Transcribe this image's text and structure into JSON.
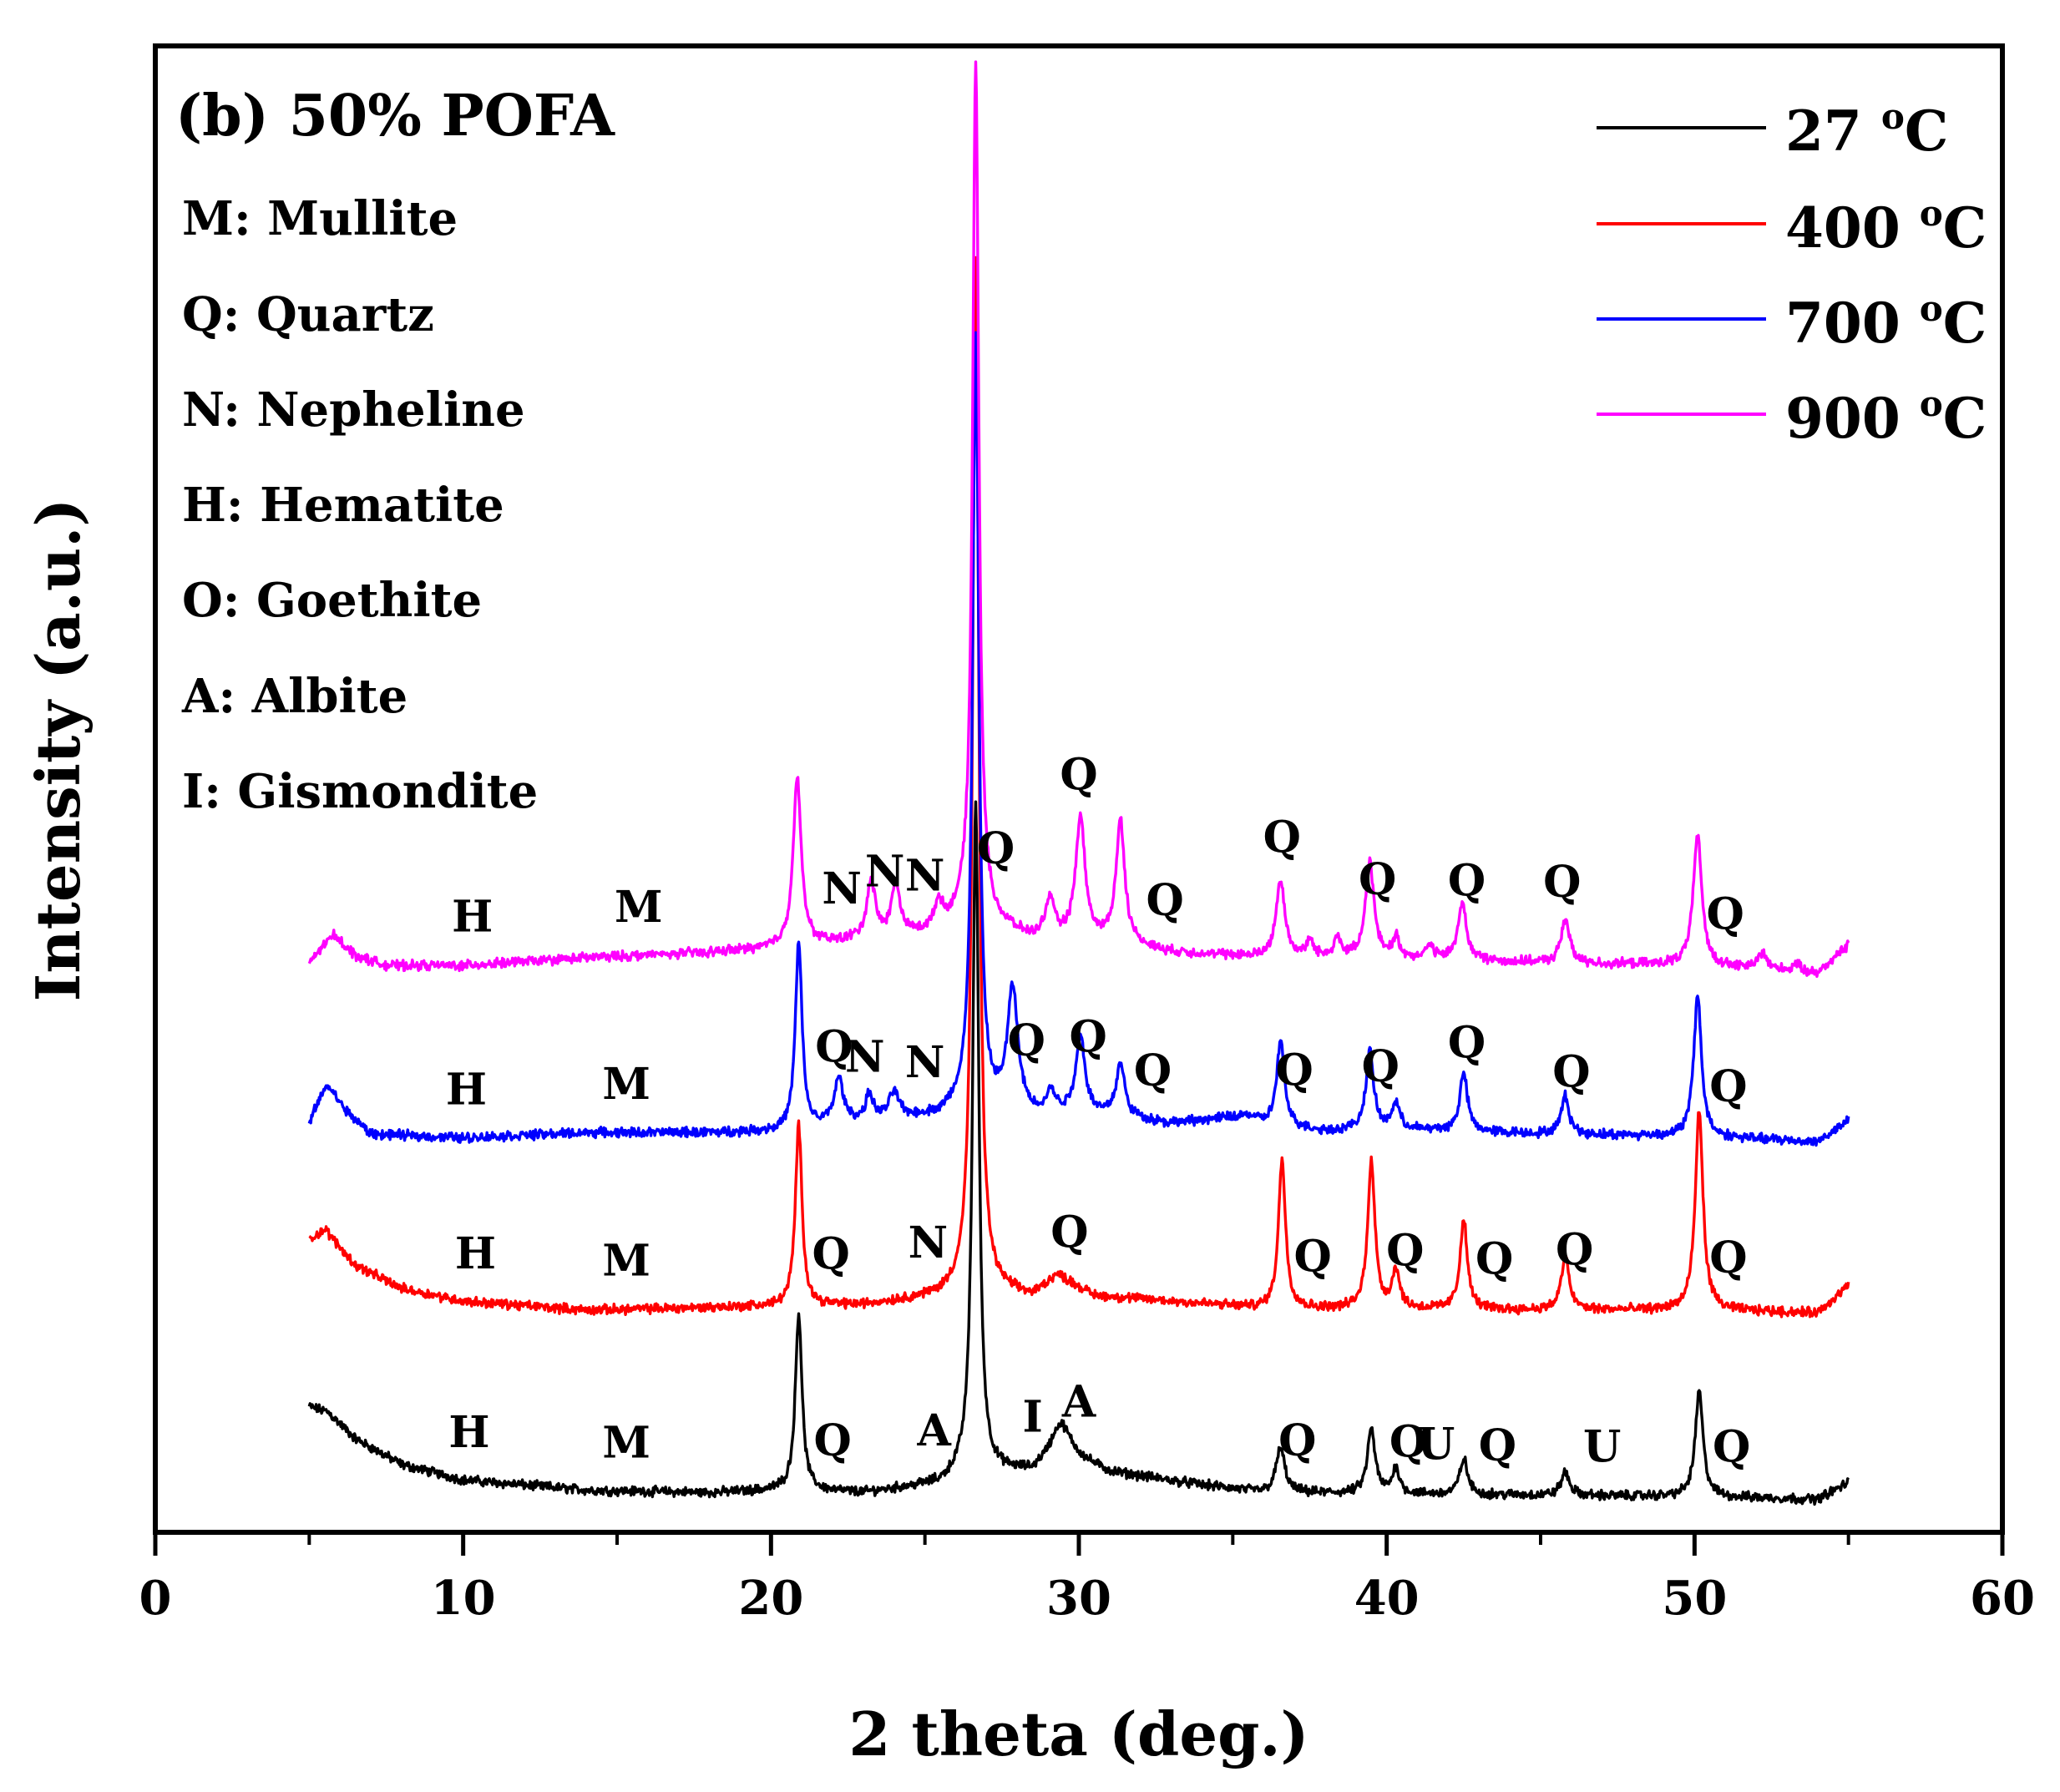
{
  "chart_data": {
    "type": "line",
    "title": "(b) 50% POFA",
    "xlabel": "2 theta (deg.)",
    "ylabel": "Intensity (a.u.)",
    "xlim": [
      0,
      60
    ],
    "xticks": [
      0,
      10,
      20,
      30,
      40,
      50,
      60
    ],
    "xtick_labels": [
      "0",
      "10",
      "20",
      "30",
      "40",
      "50",
      "60"
    ],
    "y_axis_ticks_shown": false,
    "phase_key": [
      "M: Mullite",
      "Q: Quartz",
      "N: Nepheline",
      "H: Hematite",
      "O: Goethite",
      "A: Albite",
      "I: Gismondite"
    ],
    "legend": {
      "position": "top-right",
      "entries": [
        {
          "label": "27 °C",
          "value": "27",
          "unit": "°C",
          "color": "#000000"
        },
        {
          "label": "400 °C",
          "value": "400",
          "unit": "°C",
          "color": "#ff0000"
        },
        {
          "label": "700 °C",
          "value": "700",
          "unit": "°C",
          "color": "#0000ff"
        },
        {
          "label": "900 °C",
          "value": "900",
          "unit": "°C",
          "color": "#ff00ff"
        }
      ]
    },
    "series": [
      {
        "name": "27 °C",
        "color": "#000000",
        "baseline_vs_twotheta": [
          [
            5.0,
            7.5
          ],
          [
            5.6,
            7.1
          ],
          [
            6.5,
            5.0
          ],
          [
            8,
            3.0
          ],
          [
            10,
            1.8
          ],
          [
            14,
            1.0
          ],
          [
            18,
            0.8
          ],
          [
            20.5,
            1.0
          ],
          [
            23,
            0.8
          ],
          [
            25.5,
            1.5
          ],
          [
            26.2,
            2.4
          ],
          [
            27.3,
            2.4
          ],
          [
            28.5,
            2.5
          ],
          [
            29.3,
            4.2
          ],
          [
            31,
            2.4
          ],
          [
            34,
            1.4
          ],
          [
            36,
            0.8
          ],
          [
            40,
            0.7
          ],
          [
            45,
            0.6
          ],
          [
            50,
            0.5
          ],
          [
            54,
            0.3
          ],
          [
            55,
            1.6
          ]
        ],
        "peaks": [
          {
            "two_theta": 20.9,
            "height": 13.8,
            "fwhm": 0.13
          },
          {
            "two_theta": 26.65,
            "height": 52.0,
            "fwhm": 0.12
          },
          {
            "two_theta": 29.45,
            "height": 2.0,
            "fwhm": 0.35
          },
          {
            "two_theta": 36.55,
            "height": 3.5,
            "fwhm": 0.17
          },
          {
            "two_theta": 39.5,
            "height": 5.0,
            "fwhm": 0.15
          },
          {
            "two_theta": 40.3,
            "height": 2.0,
            "fwhm": 0.14
          },
          {
            "two_theta": 42.5,
            "height": 2.8,
            "fwhm": 0.15
          },
          {
            "two_theta": 45.8,
            "height": 1.8,
            "fwhm": 0.16
          },
          {
            "two_theta": 50.15,
            "height": 8.2,
            "fwhm": 0.15
          }
        ],
        "offset": 0,
        "labels": [
          {
            "text": "H",
            "two_theta": 10.2
          },
          {
            "text": "M",
            "two_theta": 15.3
          },
          {
            "text": "Q",
            "two_theta": 22.0
          },
          {
            "text": "A",
            "two_theta": 25.3
          },
          {
            "text": "I",
            "two_theta": 28.5
          },
          {
            "text": "A",
            "two_theta": 30.0
          },
          {
            "text": "Q",
            "two_theta": 37.1
          },
          {
            "text": "Q",
            "two_theta": 40.7
          },
          {
            "text": "U",
            "two_theta": 41.6
          },
          {
            "text": "Q",
            "two_theta": 43.6
          },
          {
            "text": "U",
            "two_theta": 47.0
          },
          {
            "text": "Q",
            "two_theta": 51.2
          }
        ]
      },
      {
        "name": "400 °C",
        "color": "#ff0000",
        "baseline_vs_twotheta": [
          [
            5.0,
            6.0
          ],
          [
            5.5,
            6.8
          ],
          [
            6.5,
            4.0
          ],
          [
            8,
            2.2
          ],
          [
            10,
            1.2
          ],
          [
            14,
            0.5
          ],
          [
            18,
            0.7
          ],
          [
            20.5,
            0.8
          ],
          [
            23,
            0.9
          ],
          [
            25.5,
            1.6
          ],
          [
            26.3,
            2.2
          ],
          [
            27.2,
            2.0
          ],
          [
            28.5,
            1.6
          ],
          [
            29.3,
            3.2
          ],
          [
            30.5,
            1.6
          ],
          [
            34,
            1.0
          ],
          [
            36,
            0.6
          ],
          [
            40,
            0.6
          ],
          [
            45,
            0.5
          ],
          [
            50,
            0.5
          ],
          [
            54,
            0.3
          ],
          [
            55,
            2.4
          ]
        ],
        "peaks": [
          {
            "two_theta": 20.9,
            "height": 14.0,
            "fwhm": 0.13
          },
          {
            "two_theta": 26.65,
            "height": 80.0,
            "fwhm": 0.12
          },
          {
            "two_theta": 36.6,
            "height": 11.5,
            "fwhm": 0.14
          },
          {
            "two_theta": 39.5,
            "height": 11.5,
            "fwhm": 0.14
          },
          {
            "two_theta": 40.3,
            "height": 3.0,
            "fwhm": 0.14
          },
          {
            "two_theta": 42.5,
            "height": 7.0,
            "fwhm": 0.14
          },
          {
            "two_theta": 45.8,
            "height": 4.0,
            "fwhm": 0.16
          },
          {
            "two_theta": 50.15,
            "height": 15.5,
            "fwhm": 0.15
          }
        ],
        "offset": 14.5,
        "labels": [
          {
            "text": "H",
            "two_theta": 10.4
          },
          {
            "text": "M",
            "two_theta": 15.3
          },
          {
            "text": "Q",
            "two_theta": 21.95
          },
          {
            "text": "N",
            "two_theta": 25.1
          },
          {
            "text": "Q",
            "two_theta": 29.7
          },
          {
            "text": "Q",
            "two_theta": 37.6
          },
          {
            "text": "Q",
            "two_theta": 40.6
          },
          {
            "text": "Q",
            "two_theta": 43.5
          },
          {
            "text": "Q",
            "two_theta": 46.1
          },
          {
            "text": "Q",
            "two_theta": 51.1
          }
        ]
      },
      {
        "name": "700 °C",
        "color": "#0000ff",
        "baseline_vs_twotheta": [
          [
            5.0,
            2.0
          ],
          [
            5.3,
            3.8
          ],
          [
            5.6,
            5.0
          ],
          [
            6.2,
            3.0
          ],
          [
            7,
            1.2
          ],
          [
            10,
            0.9
          ],
          [
            14,
            1.3
          ],
          [
            18,
            1.3
          ],
          [
            20.5,
            1.4
          ],
          [
            22.5,
            2.0
          ],
          [
            24,
            2.4
          ],
          [
            25.5,
            2.6
          ],
          [
            26.3,
            3.5
          ],
          [
            27.3,
            3.0
          ],
          [
            28.5,
            2.6
          ],
          [
            29,
            2.8
          ],
          [
            31,
            2.6
          ],
          [
            33,
            2.0
          ],
          [
            35.5,
            2.6
          ],
          [
            36,
            2.0
          ],
          [
            38,
            1.4
          ],
          [
            40,
            1.6
          ],
          [
            45,
            1.2
          ],
          [
            50,
            1.0
          ],
          [
            54,
            0.6
          ],
          [
            55,
            2.2
          ]
        ],
        "peaks": [
          {
            "two_theta": 20.9,
            "height": 14.5,
            "fwhm": 0.13
          },
          {
            "two_theta": 22.2,
            "height": 3.5,
            "fwhm": 0.18
          },
          {
            "two_theta": 23.2,
            "height": 2.0,
            "fwhm": 0.14
          },
          {
            "two_theta": 24.0,
            "height": 2.0,
            "fwhm": 0.18
          },
          {
            "two_theta": 26.65,
            "height": 60.0,
            "fwhm": 0.12
          },
          {
            "two_theta": 27.85,
            "height": 9.5,
            "fwhm": 0.2
          },
          {
            "two_theta": 29.1,
            "height": 1.5,
            "fwhm": 0.15
          },
          {
            "two_theta": 30.05,
            "height": 6.0,
            "fwhm": 0.18
          },
          {
            "two_theta": 31.35,
            "height": 4.0,
            "fwhm": 0.17
          },
          {
            "two_theta": 36.55,
            "height": 6.5,
            "fwhm": 0.15
          },
          {
            "two_theta": 39.45,
            "height": 6.0,
            "fwhm": 0.15
          },
          {
            "two_theta": 40.3,
            "height": 2.0,
            "fwhm": 0.14
          },
          {
            "two_theta": 42.5,
            "height": 4.5,
            "fwhm": 0.15
          },
          {
            "two_theta": 45.8,
            "height": 3.0,
            "fwhm": 0.15
          },
          {
            "two_theta": 50.1,
            "height": 11.0,
            "fwhm": 0.15
          }
        ],
        "offset": 27.5,
        "labels": [
          {
            "text": "H",
            "two_theta": 10.1
          },
          {
            "text": "M",
            "two_theta": 15.3
          },
          {
            "text": "Q",
            "two_theta": 22.05
          },
          {
            "text": "N",
            "two_theta": 23.05
          },
          {
            "text": "N",
            "two_theta": 25.0
          },
          {
            "text": "Q",
            "two_theta": 28.3
          },
          {
            "text": "Q",
            "two_theta": 30.3
          },
          {
            "text": "Q",
            "two_theta": 32.4
          },
          {
            "text": "Q",
            "two_theta": 37.0
          },
          {
            "text": "Q",
            "two_theta": 39.8
          },
          {
            "text": "Q",
            "two_theta": 42.6
          },
          {
            "text": "Q",
            "two_theta": 46.0
          },
          {
            "text": "Q",
            "two_theta": 51.1
          }
        ]
      },
      {
        "name": "900 °C",
        "color": "#ff00ff",
        "baseline_vs_twotheta": [
          [
            5.0,
            1.0
          ],
          [
            5.4,
            2.2
          ],
          [
            5.8,
            3.2
          ],
          [
            6.5,
            1.6
          ],
          [
            7.5,
            0.8
          ],
          [
            10,
            0.8
          ],
          [
            14,
            1.4
          ],
          [
            18,
            1.8
          ],
          [
            20.5,
            2.2
          ],
          [
            23,
            2.8
          ],
          [
            25.5,
            3.4
          ],
          [
            26.3,
            4.5
          ],
          [
            27.3,
            3.8
          ],
          [
            28.5,
            2.8
          ],
          [
            29.5,
            2.8
          ],
          [
            31,
            2.6
          ],
          [
            33,
            1.8
          ],
          [
            36,
            1.4
          ],
          [
            40,
            1.4
          ],
          [
            45,
            1.0
          ],
          [
            50,
            0.8
          ],
          [
            54,
            0.2
          ],
          [
            55,
            2.4
          ]
        ],
        "peaks": [
          {
            "two_theta": 20.85,
            "height": 13.0,
            "fwhm": 0.16
          },
          {
            "two_theta": 23.25,
            "height": 4.5,
            "fwhm": 0.16
          },
          {
            "two_theta": 24.05,
            "height": 4.0,
            "fwhm": 0.16
          },
          {
            "two_theta": 25.45,
            "height": 2.2,
            "fwhm": 0.15
          },
          {
            "two_theta": 26.65,
            "height": 67.0,
            "fwhm": 0.12
          },
          {
            "two_theta": 29.05,
            "height": 3.0,
            "fwhm": 0.17
          },
          {
            "two_theta": 30.05,
            "height": 9.5,
            "fwhm": 0.18
          },
          {
            "two_theta": 31.35,
            "height": 9.5,
            "fwhm": 0.17
          },
          {
            "two_theta": 36.55,
            "height": 6.0,
            "fwhm": 0.17
          },
          {
            "two_theta": 37.5,
            "height": 1.2,
            "fwhm": 0.14
          },
          {
            "two_theta": 38.4,
            "height": 1.5,
            "fwhm": 0.14
          },
          {
            "two_theta": 39.45,
            "height": 7.5,
            "fwhm": 0.16
          },
          {
            "two_theta": 40.3,
            "height": 1.5,
            "fwhm": 0.13
          },
          {
            "two_theta": 41.4,
            "height": 1.0,
            "fwhm": 0.14
          },
          {
            "two_theta": 42.45,
            "height": 4.5,
            "fwhm": 0.16
          },
          {
            "two_theta": 45.8,
            "height": 3.5,
            "fwhm": 0.16
          },
          {
            "two_theta": 50.1,
            "height": 10.0,
            "fwhm": 0.17
          },
          {
            "two_theta": 52.2,
            "height": 1.3,
            "fwhm": 0.18
          },
          {
            "two_theta": 53.3,
            "height": 0.6,
            "fwhm": 0.15
          }
        ],
        "offset": 41.0,
        "labels": [
          {
            "text": "H",
            "two_theta": 10.3
          },
          {
            "text": "M",
            "two_theta": 15.7
          },
          {
            "text": "N",
            "two_theta": 22.3
          },
          {
            "text": "N",
            "two_theta": 23.7
          },
          {
            "text": "N",
            "two_theta": 25.0
          },
          {
            "text": "Q",
            "two_theta": 27.3
          },
          {
            "text": "Q",
            "two_theta": 30.0
          },
          {
            "text": "Q",
            "two_theta": 32.8
          },
          {
            "text": "Q",
            "two_theta": 36.6
          },
          {
            "text": "Q",
            "two_theta": 39.7
          },
          {
            "text": "Q",
            "two_theta": 42.6
          },
          {
            "text": "Q",
            "two_theta": 45.7
          },
          {
            "text": "Q",
            "two_theta": 51.0
          }
        ]
      }
    ]
  }
}
